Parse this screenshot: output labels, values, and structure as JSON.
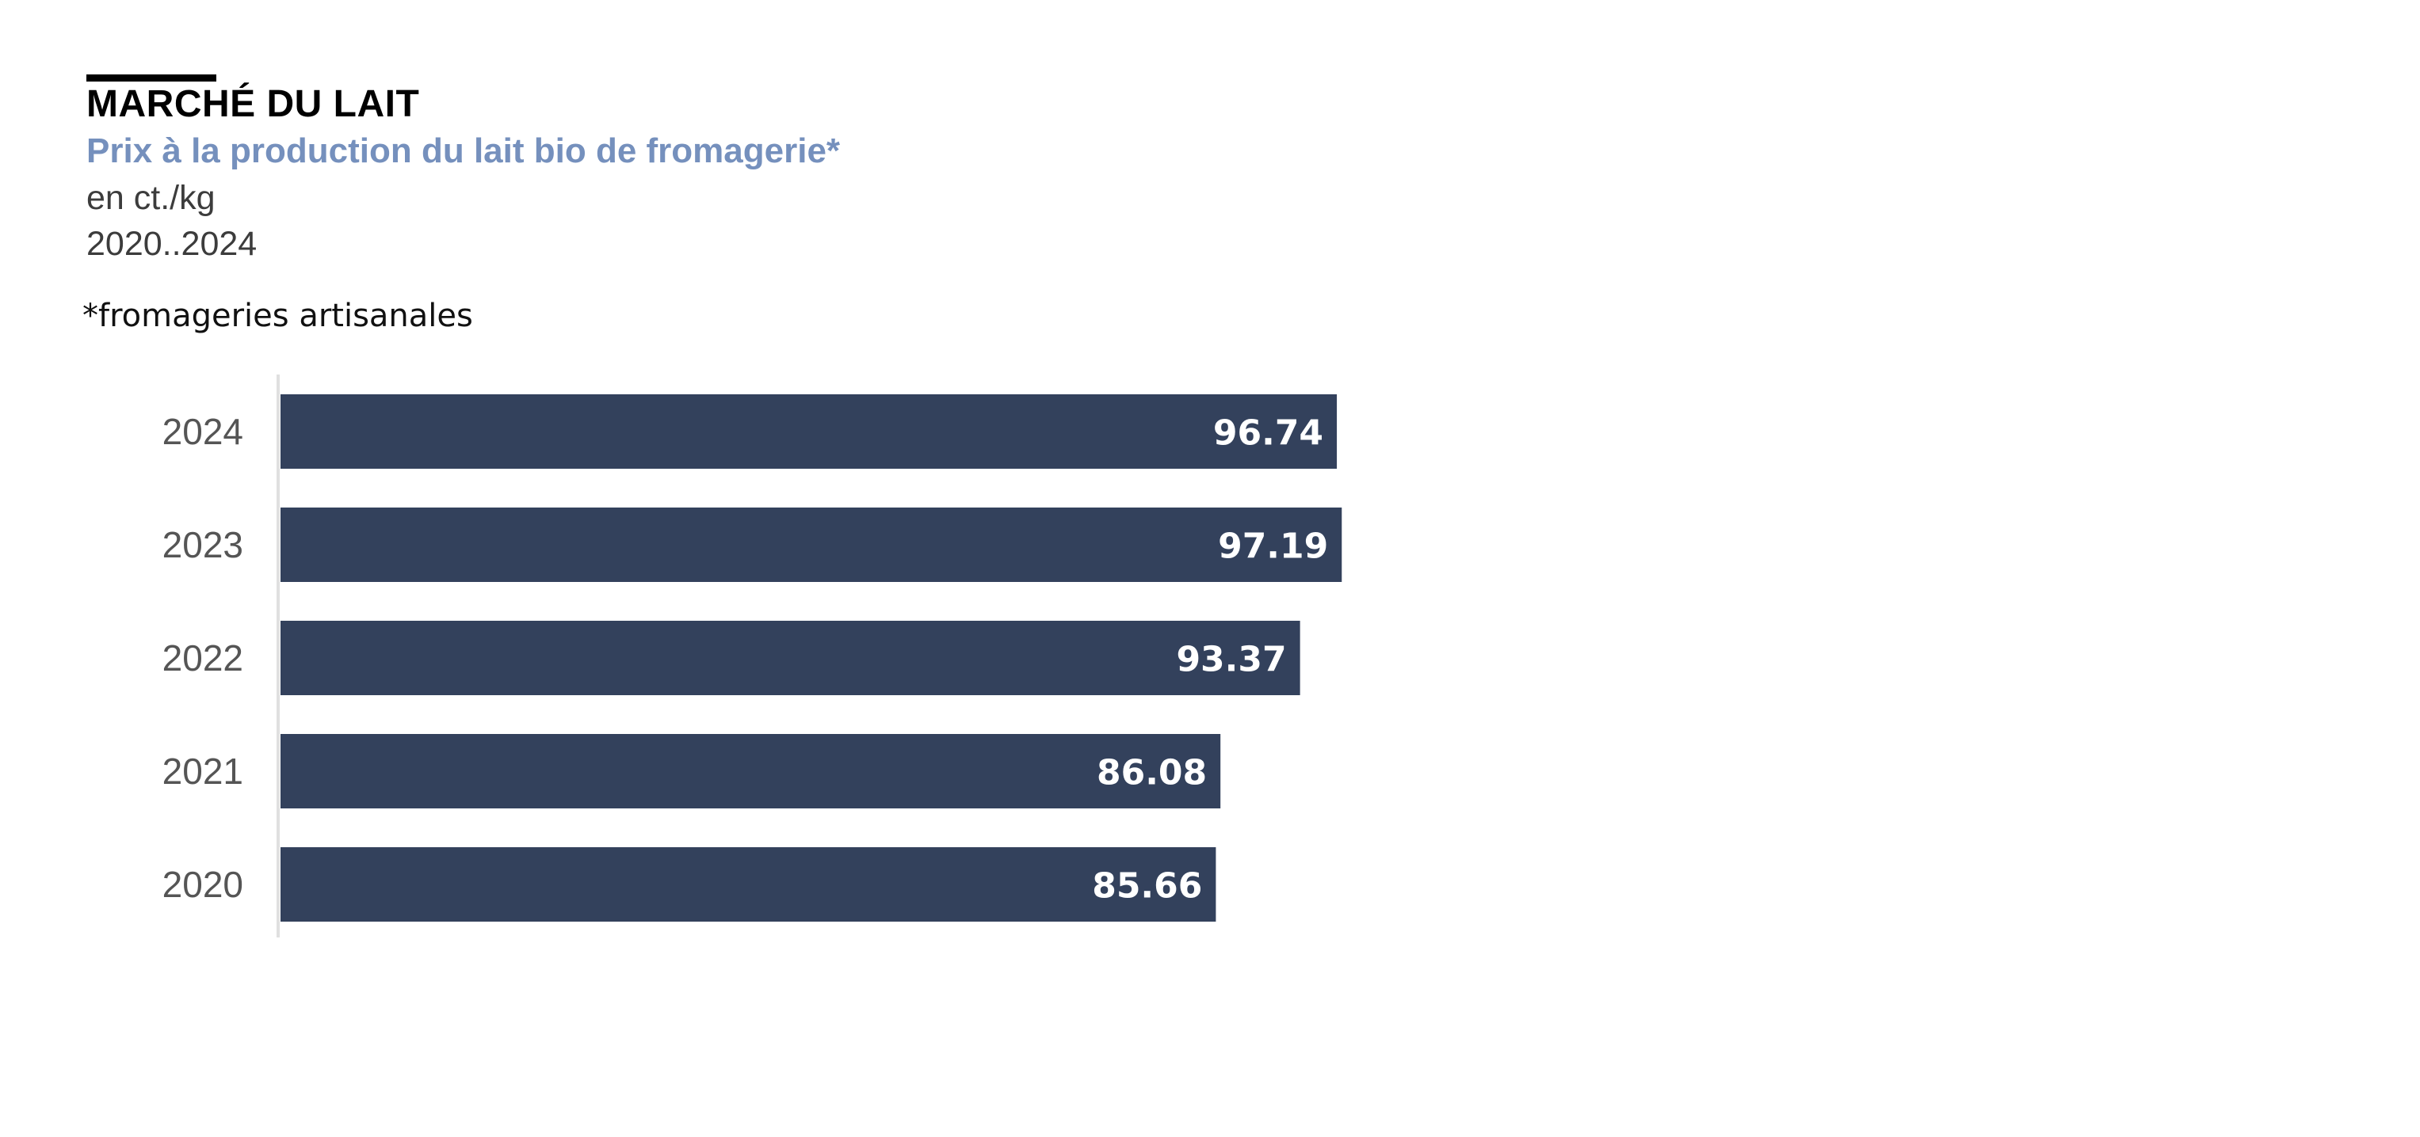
{
  "header": {
    "title": "MARCHÉ DU LAIT",
    "subtitle": "Prix à la production du lait bio de fromagerie*",
    "unit": "en ct./kg",
    "period": "2020..2024",
    "footnote": "*fromageries artisanales"
  },
  "colors": {
    "bar": "#33415c",
    "bar_label": "#ffffff",
    "axis_label": "#555555",
    "axis_line": "#e0e0e0",
    "title_rule": "#000000",
    "subtitle": "#7590bd"
  },
  "chart_data": {
    "type": "bar",
    "orientation": "horizontal",
    "categories": [
      "2024",
      "2023",
      "2022",
      "2021",
      "2020"
    ],
    "values": [
      96.74,
      97.19,
      93.37,
      86.08,
      85.66
    ],
    "value_labels": [
      "96.74",
      "97.19",
      "93.37",
      "86.08",
      "85.66"
    ],
    "title": "MARCHÉ DU LAIT",
    "xlabel": "",
    "ylabel": "",
    "xlim": [
      0,
      100
    ],
    "grid": false,
    "legend": "none"
  }
}
